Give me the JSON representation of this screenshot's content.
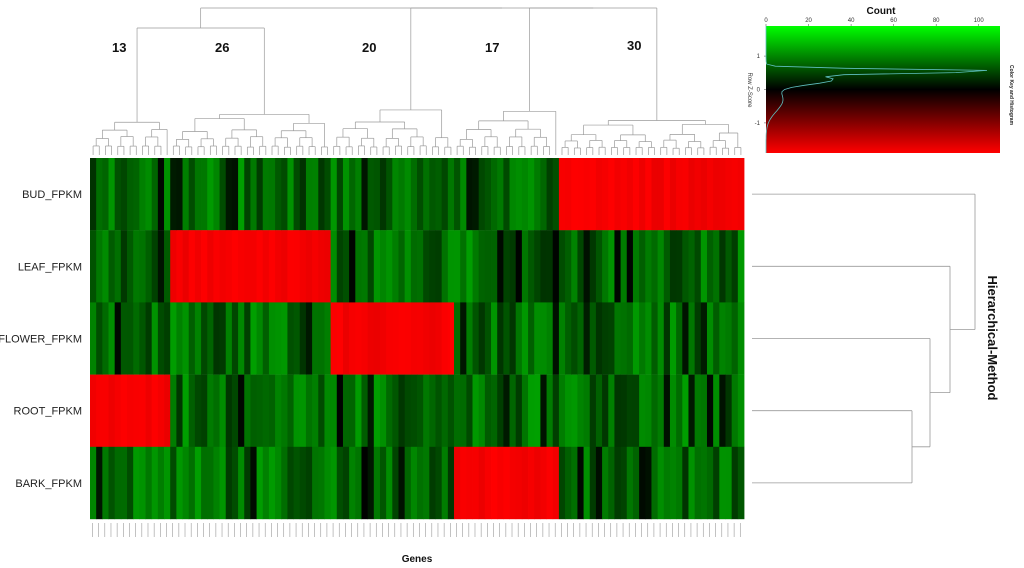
{
  "chart_data": {
    "type": "heatmap",
    "rows": [
      "BUD_FPKM",
      "LEAF_FPKM",
      "FLOWER_FPKM",
      "ROOT_FPKM",
      "BARK_FPKM"
    ],
    "xlabel": "Genes",
    "side_label": "Hierarchical-Method",
    "clusters": [
      {
        "label": "13",
        "size": 13,
        "high_row": "ROOT_FPKM"
      },
      {
        "label": "26",
        "size": 26,
        "high_row": "LEAF_FPKM"
      },
      {
        "label": "20",
        "size": 20,
        "high_row": "FLOWER_FPKM"
      },
      {
        "label": "17",
        "size": 17,
        "high_row": "BARK_FPKM"
      },
      {
        "label": "30",
        "size": 30,
        "high_row": "BUD_FPKM"
      }
    ],
    "color_scale": {
      "low": "#00c000",
      "mid": "#000000",
      "high": "#ff0000"
    },
    "color_key": {
      "title": "Color Key and Histogram",
      "xlabel": "Count",
      "ylabel": "Row Z-Score",
      "x_ticks": [
        0,
        20,
        40,
        60,
        80,
        100
      ],
      "xlim": [
        0,
        110
      ],
      "y_ticks": [
        -1,
        0,
        1
      ],
      "ylim": [
        -1.9,
        1.9
      ]
    }
  }
}
